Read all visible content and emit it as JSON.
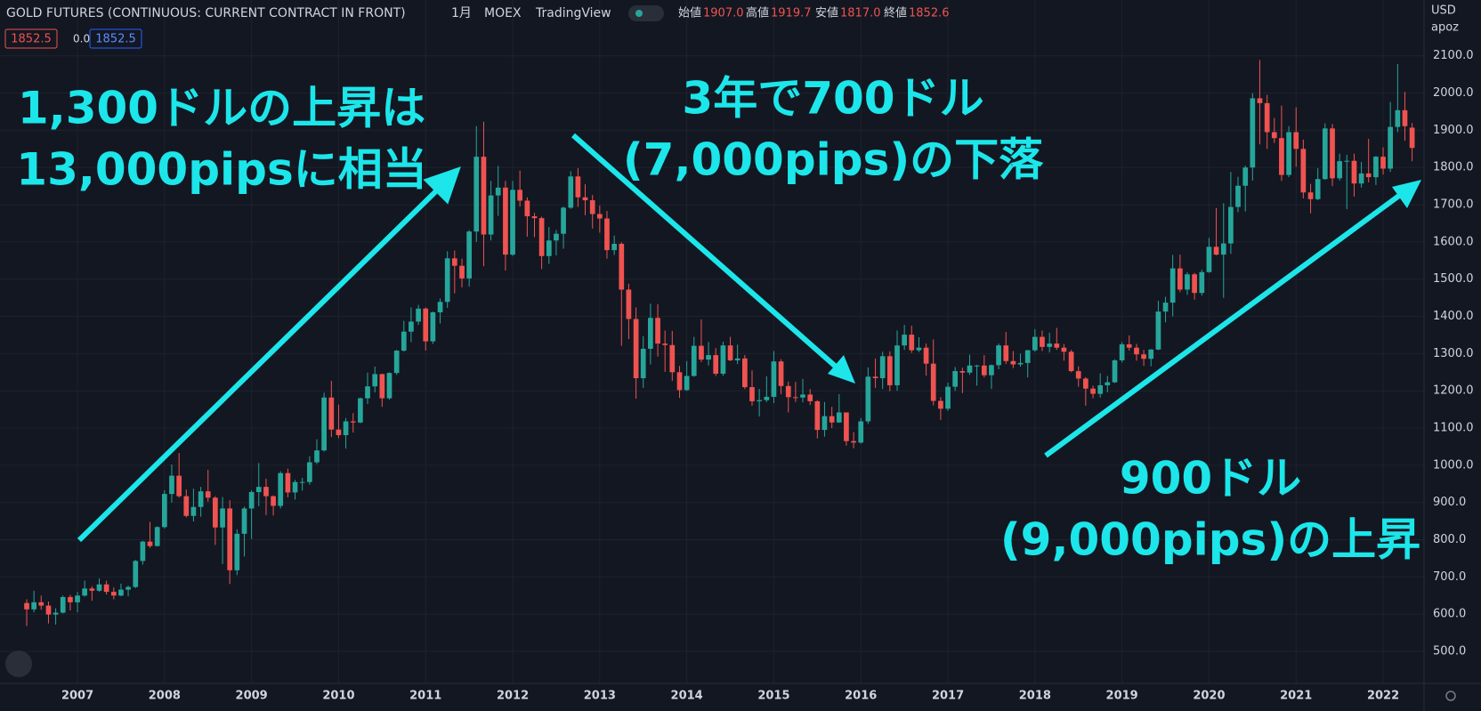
{
  "header": {
    "title": "GOLD FUTURES (CONTINUOUS: CURRENT CONTRACT IN FRONT)",
    "interval": "1月",
    "exchange": "MOEX",
    "source": "TradingView",
    "ohlc": [
      {
        "label": "始値",
        "value": "1907.0"
      },
      {
        "label": "高値",
        "value": "1919.7"
      },
      {
        "label": "安値",
        "value": "1817.0"
      },
      {
        "label": "終値",
        "value": "1852.6"
      }
    ],
    "badges": [
      "1852.5",
      "0.0",
      "1852.5"
    ],
    "currency": "USD",
    "scale_label": "apoz"
  },
  "annotations": [
    {
      "lines": [
        "1,300ドルの上昇は",
        "13,000pipsに相当"
      ]
    },
    {
      "lines": [
        "3年で700ドル",
        "(7,000pips)の下落"
      ]
    },
    {
      "lines": [
        "900ドル",
        "(9,000pips)の上昇"
      ]
    }
  ],
  "chart_data": {
    "type": "candlestick",
    "up_color": "#26a69a",
    "down_color": "#ef5350",
    "grid": true,
    "xlim": [
      2006.11,
      2022.47
    ],
    "xticks": [
      2007,
      2008,
      2009,
      2010,
      2011,
      2012,
      2013,
      2014,
      2015,
      2016,
      2017,
      2018,
      2019,
      2020,
      2021,
      2022
    ],
    "ylim": [
      414,
      2250
    ],
    "yticks": [
      {
        "value": 500,
        "label": "500.0"
      },
      {
        "value": 600,
        "label": "600.0"
      },
      {
        "value": 700,
        "label": "700.0"
      },
      {
        "value": 800,
        "label": "800.0"
      },
      {
        "value": 900,
        "label": "900.0"
      },
      {
        "value": 1000,
        "label": "1000.0"
      },
      {
        "value": 1100,
        "label": "1100.0"
      },
      {
        "value": 1200,
        "label": "1200.0"
      },
      {
        "value": 1300,
        "label": "1300.0"
      },
      {
        "value": 1400,
        "label": "1400.0"
      },
      {
        "value": 1500,
        "label": "1500.0"
      },
      {
        "value": 1600,
        "label": "1600.0"
      },
      {
        "value": 1700,
        "label": "1700.0"
      },
      {
        "value": 1800,
        "label": "1800.0"
      },
      {
        "value": 1900,
        "label": "1900.0"
      },
      {
        "value": 2000,
        "label": "2000.0"
      },
      {
        "value": 2100,
        "label": "2100.0"
      }
    ],
    "x": [
      2006.417,
      2006.5,
      2006.583,
      2006.667,
      2006.75,
      2006.833,
      2006.917,
      2007,
      2007.083,
      2007.167,
      2007.25,
      2007.333,
      2007.417,
      2007.5,
      2007.583,
      2007.667,
      2007.75,
      2007.833,
      2007.917,
      2008,
      2008.083,
      2008.167,
      2008.25,
      2008.333,
      2008.417,
      2008.5,
      2008.583,
      2008.667,
      2008.75,
      2008.833,
      2008.917,
      2009,
      2009.083,
      2009.167,
      2009.25,
      2009.333,
      2009.417,
      2009.5,
      2009.583,
      2009.667,
      2009.75,
      2009.833,
      2009.917,
      2010,
      2010.083,
      2010.167,
      2010.25,
      2010.333,
      2010.417,
      2010.5,
      2010.583,
      2010.667,
      2010.75,
      2010.833,
      2010.917,
      2011,
      2011.083,
      2011.167,
      2011.25,
      2011.333,
      2011.417,
      2011.5,
      2011.583,
      2011.667,
      2011.75,
      2011.833,
      2011.917,
      2012,
      2012.083,
      2012.167,
      2012.25,
      2012.333,
      2012.417,
      2012.5,
      2012.583,
      2012.667,
      2012.75,
      2012.833,
      2012.917,
      2013,
      2013.083,
      2013.167,
      2013.25,
      2013.333,
      2013.417,
      2013.5,
      2013.583,
      2013.667,
      2013.75,
      2013.833,
      2013.917,
      2014,
      2014.083,
      2014.167,
      2014.25,
      2014.333,
      2014.417,
      2014.5,
      2014.583,
      2014.667,
      2014.75,
      2014.833,
      2014.917,
      2015,
      2015.083,
      2015.167,
      2015.25,
      2015.333,
      2015.417,
      2015.5,
      2015.583,
      2015.667,
      2015.75,
      2015.833,
      2015.917,
      2016,
      2016.083,
      2016.167,
      2016.25,
      2016.333,
      2016.417,
      2016.5,
      2016.583,
      2016.667,
      2016.75,
      2016.833,
      2016.917,
      2017,
      2017.083,
      2017.167,
      2017.25,
      2017.333,
      2017.417,
      2017.5,
      2017.583,
      2017.667,
      2017.75,
      2017.833,
      2017.917,
      2018,
      2018.083,
      2018.167,
      2018.25,
      2018.333,
      2018.417,
      2018.5,
      2018.583,
      2018.667,
      2018.75,
      2018.833,
      2018.917,
      2019,
      2019.083,
      2019.167,
      2019.25,
      2019.333,
      2019.417,
      2019.5,
      2019.583,
      2019.667,
      2019.75,
      2019.833,
      2019.917,
      2020,
      2020.083,
      2020.167,
      2020.25,
      2020.333,
      2020.417,
      2020.5,
      2020.583,
      2020.667,
      2020.75,
      2020.833,
      2020.917,
      2021,
      2021.083,
      2021.167,
      2021.25,
      2021.333,
      2021.417,
      2021.5,
      2021.583,
      2021.667,
      2021.75,
      2021.833,
      2021.917,
      2022,
      2022.083,
      2022.167,
      2022.25,
      2022.333
    ],
    "open": [
      630,
      613,
      632,
      623,
      599,
      604,
      646,
      632,
      650,
      669,
      663,
      680,
      660,
      650,
      666,
      673,
      743,
      795,
      783,
      834,
      923,
      972,
      917,
      864,
      888,
      930,
      913,
      833,
      884,
      718,
      816,
      884,
      928,
      942,
      917,
      891,
      979,
      927,
      955,
      955,
      1008,
      1040,
      1182,
      1096,
      1081,
      1118,
      1115,
      1180,
      1212,
      1245,
      1180,
      1248,
      1308,
      1359,
      1386,
      1421,
      1333,
      1411,
      1439,
      1556,
      1536,
      1502,
      1628,
      1829,
      1620,
      1725,
      1746,
      1566,
      1740,
      1711,
      1669,
      1664,
      1562,
      1604,
      1622,
      1692,
      1776,
      1720,
      1712,
      1675,
      1663,
      1578,
      1595,
      1472,
      1393,
      1234,
      1313,
      1396,
      1327,
      1323,
      1250,
      1202,
      1240,
      1321,
      1284,
      1296,
      1246,
      1322,
      1282,
      1287,
      1210,
      1172,
      1175,
      1184,
      1279,
      1213,
      1183,
      1182,
      1190,
      1172,
      1095,
      1132,
      1115,
      1142,
      1065,
      1061,
      1118,
      1238,
      1234,
      1293,
      1215,
      1322,
      1351,
      1309,
      1316,
      1273,
      1173,
      1152,
      1211,
      1253,
      1249,
      1268,
      1268,
      1242,
      1269,
      1322,
      1280,
      1271,
      1275,
      1309,
      1345,
      1318,
      1327,
      1316,
      1305,
      1253,
      1233,
      1206,
      1192,
      1215,
      1223,
      1282,
      1325,
      1316,
      1298,
      1286,
      1311,
      1413,
      1437,
      1529,
      1472,
      1513,
      1463,
      1519,
      1587,
      1566,
      1596,
      1694,
      1751,
      1800,
      1986,
      1973,
      1895,
      1879,
      1780,
      1895,
      1850,
      1733,
      1715,
      1769,
      1905,
      1771,
      1817,
      1818,
      1757,
      1784,
      1774,
      1829,
      1797,
      1909,
      1954,
      1907.0
    ],
    "high": [
      640,
      663,
      650,
      634,
      616,
      650,
      652,
      660,
      690,
      675,
      696,
      690,
      672,
      682,
      677,
      746,
      797,
      848,
      836,
      933,
      1002,
      1033,
      935,
      937,
      942,
      988,
      917,
      915,
      906,
      828,
      889,
      933,
      1006,
      964,
      919,
      984,
      991,
      961,
      966,
      1024,
      1070,
      1195,
      1227,
      1163,
      1127,
      1140,
      1182,
      1249,
      1265,
      1246,
      1250,
      1310,
      1388,
      1424,
      1431,
      1424,
      1413,
      1448,
      1575,
      1577,
      1555,
      1632,
      1911,
      1923,
      1764,
      1804,
      1764,
      1764,
      1792,
      1720,
      1678,
      1668,
      1640,
      1632,
      1695,
      1790,
      1798,
      1755,
      1726,
      1698,
      1683,
      1617,
      1599,
      1488,
      1424,
      1347,
      1434,
      1433,
      1362,
      1361,
      1267,
      1280,
      1345,
      1392,
      1331,
      1315,
      1332,
      1345,
      1324,
      1296,
      1255,
      1205,
      1239,
      1307,
      1285,
      1225,
      1224,
      1232,
      1205,
      1175,
      1170,
      1157,
      1191,
      1142,
      1089,
      1127,
      1263,
      1287,
      1305,
      1306,
      1362,
      1377,
      1375,
      1344,
      1327,
      1338,
      1183,
      1222,
      1264,
      1262,
      1297,
      1270,
      1296,
      1271,
      1327,
      1358,
      1307,
      1300,
      1310,
      1366,
      1362,
      1356,
      1369,
      1326,
      1310,
      1266,
      1237,
      1214,
      1247,
      1240,
      1285,
      1331,
      1349,
      1326,
      1310,
      1312,
      1442,
      1453,
      1565,
      1566,
      1519,
      1517,
      1525,
      1611,
      1691,
      1704,
      1788,
      1775,
      1805,
      2000,
      2089,
      1995,
      1933,
      1966,
      1911,
      1962,
      1875,
      1756,
      1798,
      1919,
      1917,
      1837,
      1834,
      1837,
      1815,
      1877,
      1831,
      1854,
      1976,
      2078,
      2003,
      1919.7
    ],
    "low": [
      568,
      605,
      612,
      575,
      572,
      602,
      610,
      605,
      647,
      636,
      660,
      653,
      640,
      648,
      648,
      670,
      733,
      778,
      782,
      830,
      900,
      913,
      860,
      849,
      862,
      902,
      786,
      735,
      681,
      705,
      755,
      802,
      890,
      866,
      865,
      884,
      914,
      908,
      932,
      948,
      1003,
      1037,
      1076,
      1073,
      1045,
      1088,
      1113,
      1165,
      1196,
      1157,
      1176,
      1243,
      1305,
      1331,
      1377,
      1308,
      1326,
      1381,
      1423,
      1462,
      1478,
      1480,
      1600,
      1535,
      1604,
      1670,
      1523,
      1562,
      1695,
      1614,
      1613,
      1527,
      1541,
      1564,
      1582,
      1689,
      1694,
      1672,
      1636,
      1625,
      1555,
      1565,
      1321,
      1339,
      1179,
      1208,
      1271,
      1292,
      1251,
      1227,
      1181,
      1200,
      1238,
      1277,
      1268,
      1240,
      1240,
      1280,
      1272,
      1205,
      1160,
      1131,
      1170,
      1167,
      1191,
      1142,
      1170,
      1169,
      1162,
      1072,
      1077,
      1100,
      1114,
      1053,
      1046,
      1058,
      1111,
      1208,
      1205,
      1199,
      1200,
      1310,
      1302,
      1304,
      1241,
      1161,
      1122,
      1146,
      1200,
      1194,
      1243,
      1214,
      1236,
      1205,
      1258,
      1272,
      1261,
      1265,
      1236,
      1305,
      1307,
      1303,
      1310,
      1281,
      1250,
      1211,
      1160,
      1180,
      1182,
      1196,
      1221,
      1276,
      1308,
      1281,
      1267,
      1266,
      1309,
      1384,
      1400,
      1465,
      1458,
      1445,
      1456,
      1517,
      1564,
      1450,
      1568,
      1680,
      1682,
      1765,
      1862,
      1850,
      1866,
      1764,
      1774,
      1802,
      1717,
      1677,
      1712,
      1767,
      1750,
      1765,
      1688,
      1722,
      1746,
      1760,
      1753,
      1781,
      1788,
      1895,
      1872,
      1817.0
    ],
    "close": [
      613,
      632,
      623,
      599,
      604,
      646,
      632,
      650,
      669,
      663,
      680,
      660,
      650,
      666,
      673,
      743,
      795,
      783,
      834,
      923,
      972,
      917,
      864,
      888,
      930,
      913,
      833,
      884,
      718,
      816,
      884,
      928,
      942,
      917,
      891,
      979,
      927,
      955,
      955,
      1008,
      1040,
      1182,
      1096,
      1081,
      1118,
      1115,
      1180,
      1212,
      1245,
      1180,
      1248,
      1308,
      1359,
      1386,
      1421,
      1333,
      1411,
      1439,
      1556,
      1536,
      1502,
      1628,
      1829,
      1620,
      1725,
      1746,
      1566,
      1740,
      1711,
      1669,
      1664,
      1562,
      1604,
      1622,
      1692,
      1776,
      1720,
      1712,
      1675,
      1663,
      1578,
      1595,
      1472,
      1393,
      1234,
      1313,
      1396,
      1327,
      1323,
      1250,
      1202,
      1240,
      1321,
      1284,
      1296,
      1246,
      1322,
      1282,
      1287,
      1210,
      1172,
      1175,
      1184,
      1279,
      1213,
      1183,
      1182,
      1190,
      1172,
      1095,
      1132,
      1115,
      1142,
      1065,
      1061,
      1118,
      1238,
      1234,
      1293,
      1215,
      1322,
      1351,
      1309,
      1316,
      1273,
      1173,
      1152,
      1211,
      1253,
      1249,
      1268,
      1268,
      1242,
      1269,
      1322,
      1280,
      1271,
      1275,
      1309,
      1345,
      1318,
      1327,
      1316,
      1305,
      1253,
      1233,
      1206,
      1192,
      1215,
      1223,
      1282,
      1325,
      1316,
      1298,
      1286,
      1311,
      1413,
      1437,
      1529,
      1472,
      1513,
      1463,
      1519,
      1587,
      1566,
      1596,
      1694,
      1751,
      1800,
      1986,
      1973,
      1895,
      1879,
      1780,
      1895,
      1850,
      1733,
      1715,
      1769,
      1905,
      1771,
      1817,
      1818,
      1757,
      1784,
      1774,
      1829,
      1797,
      1909,
      1954,
      1911,
      1852.6
    ]
  }
}
